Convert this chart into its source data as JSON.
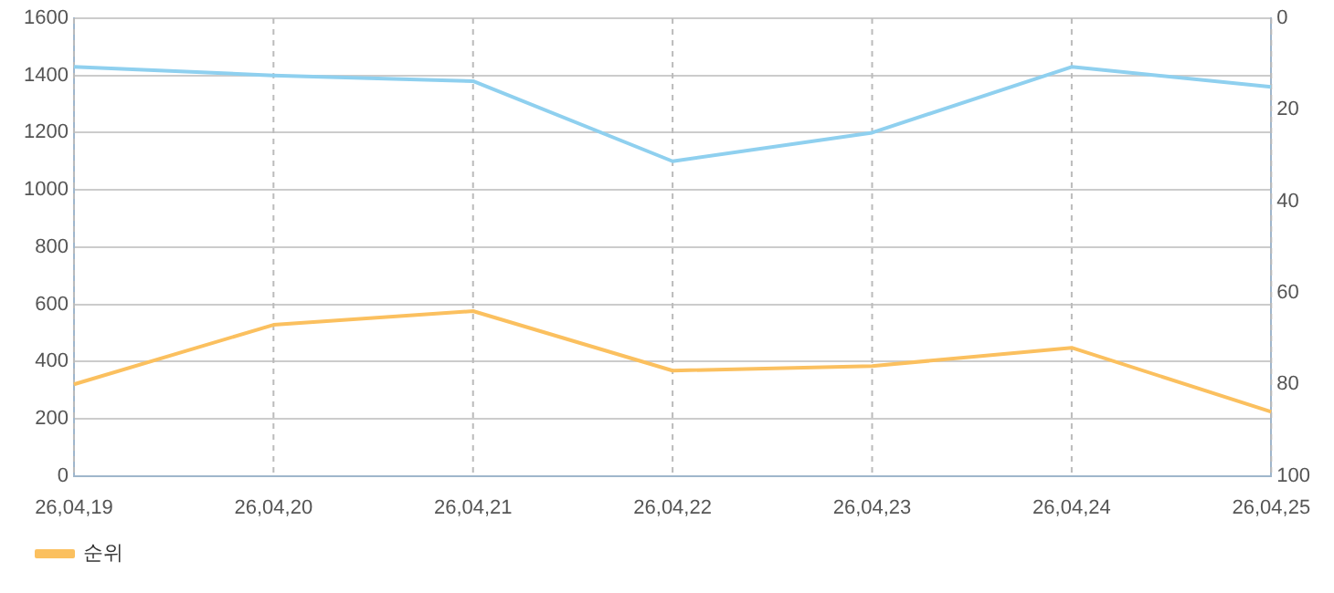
{
  "chart_data": {
    "type": "line",
    "categories": [
      "26,04,19",
      "26,04,20",
      "26,04,21",
      "26,04,22",
      "26,04,23",
      "26,04,24",
      "26,04,25"
    ],
    "series": [
      {
        "color": "#8fd0ef",
        "values": [
          1430,
          1400,
          1380,
          1100,
          1200,
          1430,
          1360
        ]
      },
      {
        "name": "순위",
        "color": "#fbc05f",
        "axis": "y2",
        "values": [
          80,
          67,
          64,
          77,
          76,
          72,
          86
        ]
      }
    ],
    "ylim": [
      0,
      1600
    ],
    "yticks": [
      0,
      200,
      400,
      600,
      800,
      1000,
      1200,
      1400,
      1600
    ],
    "y2lim": [
      100,
      0
    ],
    "y2ticks": [
      0,
      20,
      40,
      60,
      80,
      100
    ],
    "grid": true,
    "legend": "bottom left",
    "marker": "none",
    "line_style": "solid"
  }
}
